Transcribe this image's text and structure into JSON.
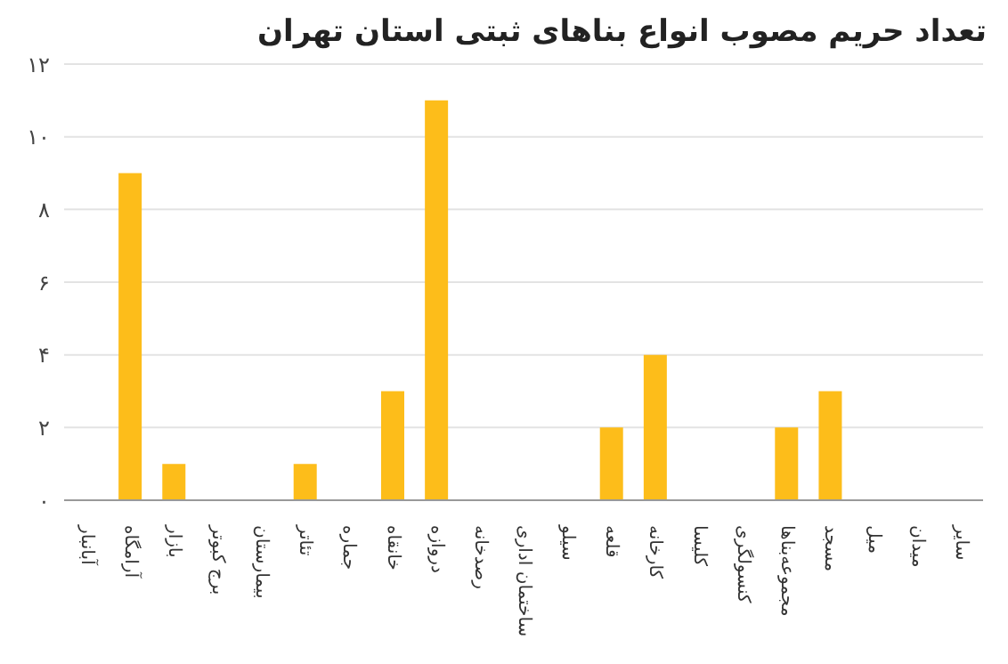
{
  "chart_data": {
    "type": "bar",
    "title": "تعداد حریم مصوب انواع بناهای ثبتی استان تهران",
    "categories": [
      "آبانبار",
      "آرامگاه",
      "بازار",
      "برج کبوتر",
      "بیمارستان",
      "تئاتر",
      "جماره",
      "خانقاه",
      "دروازه",
      "رصدخانه",
      "ساختمان اداری",
      "سیلو",
      "قلعه",
      "کارخانه",
      "کلیسا",
      "کنسولگری",
      "مجموعه‌بناها",
      "مسجد",
      "میل",
      "میدان",
      "سایر"
    ],
    "values": [
      0,
      9,
      1,
      0,
      0,
      1,
      0,
      3,
      11,
      0,
      0,
      0,
      2,
      4,
      0,
      0,
      2,
      3,
      0,
      0,
      0
    ],
    "color": "#fdbd1a",
    "ylim": [
      0,
      12
    ],
    "yticks": [
      {
        "value": 0,
        "label": "٠"
      },
      {
        "value": 2,
        "label": "۲"
      },
      {
        "value": 4,
        "label": "۴"
      },
      {
        "value": 6,
        "label": "۶"
      },
      {
        "value": 8,
        "label": "۸"
      },
      {
        "value": 10,
        "label": "۱۰"
      },
      {
        "value": 12,
        "label": "۱۲"
      }
    ],
    "grid": "y"
  }
}
